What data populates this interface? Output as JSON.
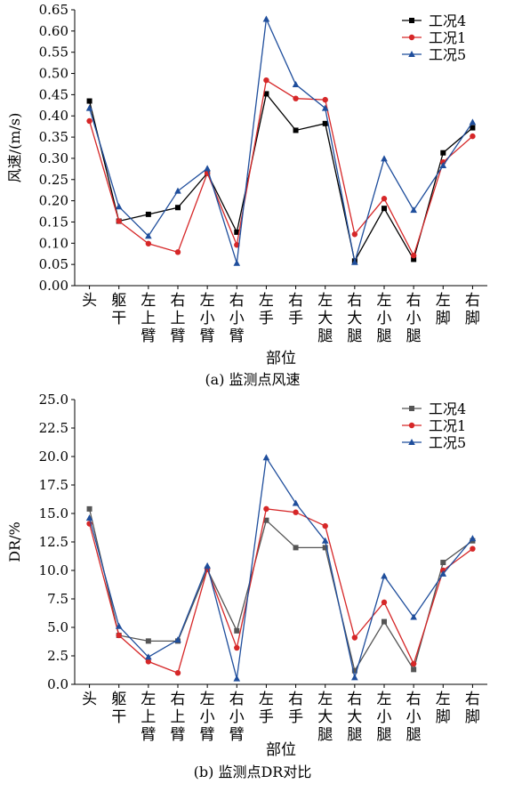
{
  "chart_data": [
    {
      "type": "line",
      "caption": "(a) 监测点风速",
      "xlabel": "部位",
      "ylabel": "风速/(m/s)",
      "ylim": [
        0,
        0.65
      ],
      "yticks": [
        "0.00",
        "0.05",
        "0.10",
        "0.15",
        "0.20",
        "0.25",
        "0.30",
        "0.35",
        "0.40",
        "0.45",
        "0.50",
        "0.55",
        "0.60",
        "0.65"
      ],
      "categories": [
        "头",
        "躯干",
        "左上臂",
        "右上臂",
        "左小臂",
        "右小臂",
        "左手",
        "右手",
        "左大腿",
        "右大腿",
        "左小腿",
        "右小腿",
        "左脚",
        "右脚"
      ],
      "grid": false,
      "legend_position": "top-right",
      "series": [
        {
          "name": "工况4",
          "color": "#000000",
          "marker": "square",
          "values": [
            0.435,
            0.152,
            0.168,
            0.184,
            0.265,
            0.126,
            0.452,
            0.366,
            0.382,
            0.058,
            0.182,
            0.062,
            0.313,
            0.372
          ]
        },
        {
          "name": "工况1",
          "color": "#d62728",
          "marker": "circle",
          "values": [
            0.388,
            0.152,
            0.099,
            0.079,
            0.265,
            0.096,
            0.484,
            0.441,
            0.438,
            0.121,
            0.205,
            0.071,
            0.291,
            0.352
          ]
        },
        {
          "name": "工况5",
          "color": "#1f4e9c",
          "marker": "triangle",
          "values": [
            0.418,
            0.186,
            0.117,
            0.223,
            0.276,
            0.053,
            0.628,
            0.474,
            0.418,
            0.055,
            0.299,
            0.178,
            0.283,
            0.385
          ]
        }
      ]
    },
    {
      "type": "line",
      "caption": "(b) 监测点DR对比",
      "xlabel": "部位",
      "ylabel": "DR/%",
      "ylim": [
        0,
        25
      ],
      "yticks": [
        "0.0",
        "2.5",
        "5.0",
        "7.5",
        "10.0",
        "12.5",
        "15.0",
        "17.5",
        "20.0",
        "22.5",
        "25.0"
      ],
      "categories": [
        "头",
        "躯干",
        "左上臂",
        "右上臂",
        "左小臂",
        "右小臂",
        "左手",
        "右手",
        "左大腿",
        "右大腿",
        "左小腿",
        "右小腿",
        "左脚",
        "右脚"
      ],
      "grid": false,
      "legend_position": "top-right",
      "series": [
        {
          "name": "工况4",
          "color": "#555555",
          "marker": "square",
          "values": [
            15.4,
            4.3,
            3.8,
            3.8,
            10.1,
            4.7,
            14.4,
            12.0,
            12.0,
            1.2,
            5.5,
            1.3,
            10.7,
            12.6
          ]
        },
        {
          "name": "工况1",
          "color": "#d62728",
          "marker": "circle",
          "values": [
            14.1,
            4.3,
            2.0,
            1.0,
            10.1,
            3.2,
            15.4,
            15.1,
            13.9,
            4.1,
            7.2,
            1.8,
            10.0,
            11.9
          ]
        },
        {
          "name": "工况5",
          "color": "#1f4e9c",
          "marker": "triangle",
          "values": [
            14.6,
            5.1,
            2.4,
            3.9,
            10.4,
            0.5,
            19.9,
            15.9,
            12.6,
            0.6,
            9.5,
            5.9,
            9.7,
            12.8
          ]
        }
      ]
    }
  ]
}
